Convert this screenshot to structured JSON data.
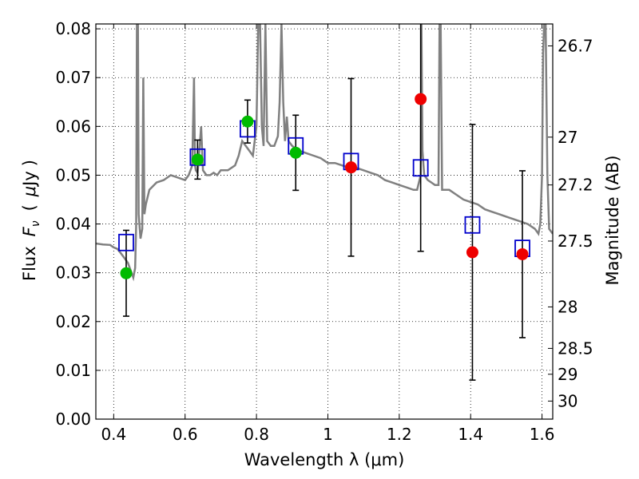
{
  "chart_data": {
    "type": "scatter",
    "xlabel": "Wavelength  λ (μm)",
    "ylabel": "Flux  Fν  ( μJy )",
    "ylabel_parts": [
      "Flux",
      "F",
      "ν",
      "(",
      "μ",
      "Jy",
      ")"
    ],
    "y2label": "Magnitude (AB)",
    "xlim": [
      0.35,
      1.63
    ],
    "ylim": [
      0.0,
      0.081
    ],
    "grid": true,
    "x_ticks": [
      0.4,
      0.6,
      0.8,
      1.0,
      1.2,
      1.4,
      1.6
    ],
    "x_tick_labels": [
      "0.4",
      "0.6",
      "0.8",
      "1",
      "1.2",
      "1.4",
      "1.6"
    ],
    "y_ticks": [
      0.0,
      0.01,
      0.02,
      0.03,
      0.04,
      0.05,
      0.06,
      0.07,
      0.08
    ],
    "y_tick_labels": [
      "0.00",
      "0.01",
      "0.02",
      "0.03",
      "0.04",
      "0.05",
      "0.06",
      "0.07",
      "0.08"
    ],
    "y2_ticks": [
      {
        "flux": 0.0765,
        "label": "26.7"
      },
      {
        "flux": 0.0578,
        "label": "27"
      },
      {
        "flux": 0.048,
        "label": "27.2"
      },
      {
        "flux": 0.0365,
        "label": "27.5"
      },
      {
        "flux": 0.023,
        "label": "28"
      },
      {
        "flux": 0.0145,
        "label": "28.5"
      },
      {
        "flux": 0.0092,
        "label": "29"
      },
      {
        "flux": 0.0037,
        "label": "30"
      }
    ],
    "series": [
      {
        "kind": "model_spectrum",
        "color": "#808080",
        "x": [
          0.35,
          0.37,
          0.39,
          0.4,
          0.41,
          0.42,
          0.43,
          0.44,
          0.45,
          0.455,
          0.46,
          0.463,
          0.465,
          0.468,
          0.47,
          0.475,
          0.48,
          0.483,
          0.486,
          0.49,
          0.5,
          0.52,
          0.54,
          0.56,
          0.58,
          0.6,
          0.61,
          0.62,
          0.625,
          0.628,
          0.63,
          0.635,
          0.64,
          0.645,
          0.65,
          0.655,
          0.66,
          0.67,
          0.68,
          0.69,
          0.7,
          0.72,
          0.74,
          0.75,
          0.76,
          0.77,
          0.78,
          0.79,
          0.8,
          0.805,
          0.81,
          0.815,
          0.82,
          0.825,
          0.83,
          0.84,
          0.85,
          0.86,
          0.865,
          0.87,
          0.875,
          0.88,
          0.885,
          0.89,
          0.9,
          0.92,
          0.94,
          0.96,
          0.98,
          1.0,
          1.02,
          1.04,
          1.06,
          1.08,
          1.1,
          1.12,
          1.14,
          1.16,
          1.18,
          1.2,
          1.22,
          1.24,
          1.25,
          1.26,
          1.262,
          1.265,
          1.27,
          1.28,
          1.29,
          1.3,
          1.31,
          1.313,
          1.316,
          1.32,
          1.34,
          1.36,
          1.38,
          1.4,
          1.42,
          1.44,
          1.46,
          1.48,
          1.5,
          1.52,
          1.54,
          1.56,
          1.58,
          1.59,
          1.595,
          1.6,
          1.603,
          1.606,
          1.61,
          1.615,
          1.62,
          1.63
        ],
        "y": [
          0.036,
          0.0358,
          0.0357,
          0.0352,
          0.0349,
          0.034,
          0.033,
          0.032,
          0.03,
          0.029,
          0.031,
          0.04,
          0.081,
          0.081,
          0.042,
          0.037,
          0.039,
          0.07,
          0.042,
          0.044,
          0.047,
          0.0485,
          0.049,
          0.05,
          0.0495,
          0.049,
          0.05,
          0.052,
          0.07,
          0.052,
          0.051,
          0.0505,
          0.055,
          0.06,
          0.051,
          0.0505,
          0.05,
          0.05,
          0.0505,
          0.05,
          0.051,
          0.051,
          0.052,
          0.054,
          0.057,
          0.056,
          0.055,
          0.054,
          0.06,
          0.081,
          0.081,
          0.06,
          0.056,
          0.081,
          0.057,
          0.056,
          0.056,
          0.058,
          0.065,
          0.081,
          0.065,
          0.057,
          0.062,
          0.057,
          0.056,
          0.055,
          0.0545,
          0.054,
          0.0535,
          0.0525,
          0.0525,
          0.052,
          0.0515,
          0.0515,
          0.051,
          0.0505,
          0.05,
          0.049,
          0.0485,
          0.048,
          0.0475,
          0.047,
          0.047,
          0.05,
          0.081,
          0.055,
          0.05,
          0.049,
          0.0485,
          0.048,
          0.048,
          0.081,
          0.081,
          0.047,
          0.047,
          0.046,
          0.045,
          0.0445,
          0.044,
          0.043,
          0.0425,
          0.042,
          0.0415,
          0.041,
          0.0405,
          0.04,
          0.039,
          0.038,
          0.04,
          0.05,
          0.075,
          0.081,
          0.081,
          0.05,
          0.039,
          0.038
        ]
      },
      {
        "kind": "model_photometry",
        "marker": "open-square",
        "color": "#0000cc",
        "x": [
          0.435,
          0.635,
          0.775,
          0.91,
          1.065,
          1.26,
          1.405,
          1.545
        ],
        "y": [
          0.0362,
          0.0537,
          0.0595,
          0.056,
          0.0528,
          0.0515,
          0.0398,
          0.035
        ]
      },
      {
        "kind": "observed",
        "marker": "filled-circle",
        "color": "#00bb00",
        "x": [
          0.435,
          0.635,
          0.775,
          0.91
        ],
        "y": [
          0.0299,
          0.0532,
          0.061,
          0.0546
        ],
        "err": [
          0.0088,
          0.004,
          0.0044,
          0.0077
        ]
      },
      {
        "kind": "observed",
        "marker": "filled-circle",
        "color": "#ee0000",
        "x": [
          1.065,
          1.26,
          1.405,
          1.545
        ],
        "y": [
          0.0516,
          0.0656,
          0.0342,
          0.0338
        ],
        "err": [
          0.0182,
          0.0312,
          0.0262,
          0.0171
        ]
      }
    ]
  }
}
